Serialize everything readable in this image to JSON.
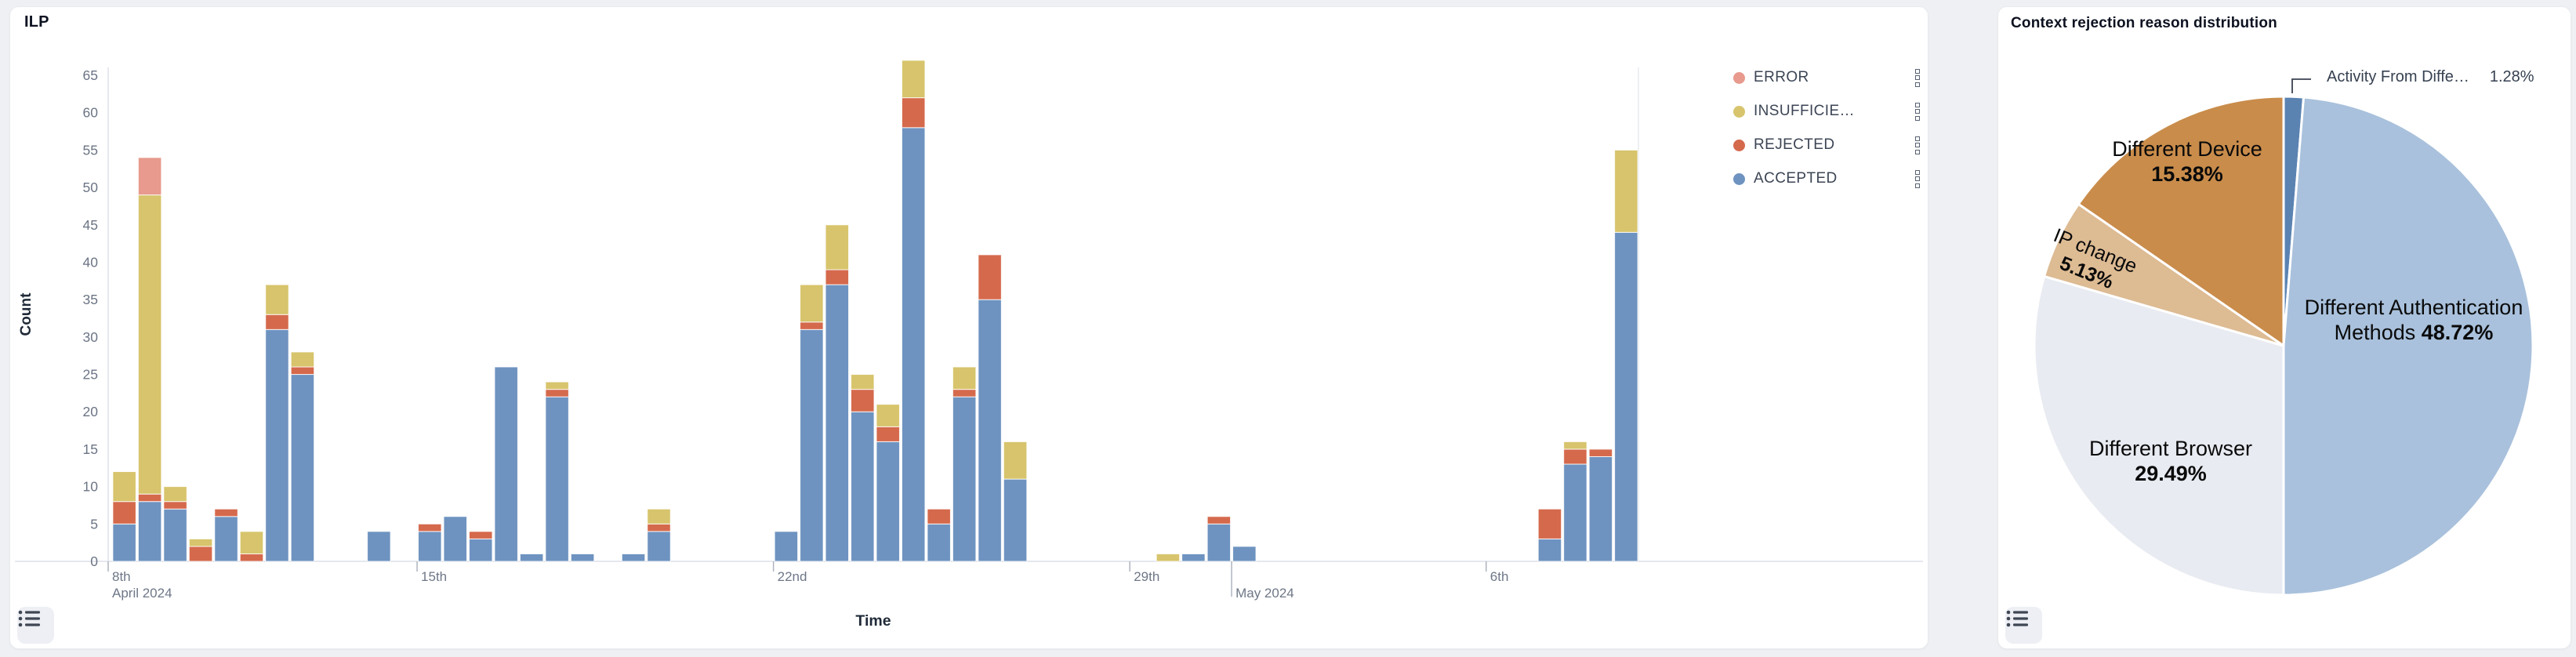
{
  "left_panel": {
    "title": "ILP",
    "xlabel": "Time",
    "ylabel": "Count",
    "legend": {
      "items": [
        {
          "label": "ERROR",
          "color": "#E79A8D"
        },
        {
          "label": "INSUFFICIE…",
          "color": "#D7C46C"
        },
        {
          "label": "REJECTED",
          "color": "#D5694C"
        },
        {
          "label": "ACCEPTED",
          "color": "#6E93C0"
        }
      ]
    }
  },
  "right_panel": {
    "title": "Context rejection reason distribution"
  },
  "icons": {
    "corner_button": "list-icon",
    "legend_row_button": "drag-handle-squares-icon"
  },
  "chart_data": [
    {
      "id": "ilp",
      "type": "bar",
      "stacked": true,
      "title": "ILP",
      "xlabel": "Time",
      "ylabel": "Count",
      "ylim": [
        0,
        65
      ],
      "ytick_step": 5,
      "grid": false,
      "legend_position": "right",
      "bin_hours": 12,
      "series_order": [
        "accepted",
        "rejected",
        "insufficient",
        "error"
      ],
      "series_colors": {
        "accepted": "#6E93C0",
        "rejected": "#D5694C",
        "insufficient": "#D7C46C",
        "error": "#E79A8D"
      },
      "xticks": [
        {
          "label": "8th",
          "sublabel": "April 2024",
          "bin": -2,
          "clamped": true
        },
        {
          "label": "15th",
          "sublabel": "",
          "bin": 12
        },
        {
          "label": "22nd",
          "sublabel": "",
          "bin": 26
        },
        {
          "label": "29th",
          "sublabel": "",
          "bin": 40
        },
        {
          "label": "",
          "sublabel": "May 2024",
          "bin": 44,
          "long_tick": true
        },
        {
          "label": "6th",
          "sublabel": "",
          "bin": 54
        }
      ],
      "bins": [
        {
          "bin": 0,
          "time": "Apr 9 00-12",
          "accepted": 5,
          "rejected": 3,
          "insufficient": 4,
          "error": 0
        },
        {
          "bin": 1,
          "time": "Apr 9 12-24",
          "accepted": 8,
          "rejected": 1,
          "insufficient": 40,
          "error": 5
        },
        {
          "bin": 2,
          "time": "Apr 10 00-12",
          "accepted": 7,
          "rejected": 1,
          "insufficient": 2,
          "error": 0
        },
        {
          "bin": 3,
          "time": "Apr 10 12-24",
          "accepted": 0,
          "rejected": 2,
          "insufficient": 1,
          "error": 0
        },
        {
          "bin": 4,
          "time": "Apr 11 00-12",
          "accepted": 6,
          "rejected": 1,
          "insufficient": 0,
          "error": 0
        },
        {
          "bin": 5,
          "time": "Apr 11 12-24",
          "accepted": 0,
          "rejected": 1,
          "insufficient": 3,
          "error": 0
        },
        {
          "bin": 6,
          "time": "Apr 12 00-12",
          "accepted": 31,
          "rejected": 2,
          "insufficient": 4,
          "error": 0
        },
        {
          "bin": 7,
          "time": "Apr 12 12-24",
          "accepted": 25,
          "rejected": 1,
          "insufficient": 2,
          "error": 0
        },
        {
          "bin": 10,
          "time": "Apr 14 00-12",
          "accepted": 4,
          "rejected": 0,
          "insufficient": 0,
          "error": 0
        },
        {
          "bin": 12,
          "time": "Apr 15 00-12",
          "accepted": 4,
          "rejected": 1,
          "insufficient": 0,
          "error": 0
        },
        {
          "bin": 13,
          "time": "Apr 15 12-24",
          "accepted": 6,
          "rejected": 0,
          "insufficient": 0,
          "error": 0
        },
        {
          "bin": 14,
          "time": "Apr 16 00-12",
          "accepted": 3,
          "rejected": 1,
          "insufficient": 0,
          "error": 0
        },
        {
          "bin": 15,
          "time": "Apr 16 12-24",
          "accepted": 26,
          "rejected": 0,
          "insufficient": 0,
          "error": 0
        },
        {
          "bin": 16,
          "time": "Apr 17 00-12",
          "accepted": 1,
          "rejected": 0,
          "insufficient": 0,
          "error": 0
        },
        {
          "bin": 17,
          "time": "Apr 17 12-24",
          "accepted": 22,
          "rejected": 1,
          "insufficient": 1,
          "error": 0
        },
        {
          "bin": 18,
          "time": "Apr 18 00-12",
          "accepted": 1,
          "rejected": 0,
          "insufficient": 0,
          "error": 0
        },
        {
          "bin": 20,
          "time": "Apr 19 00-12",
          "accepted": 1,
          "rejected": 0,
          "insufficient": 0,
          "error": 0
        },
        {
          "bin": 21,
          "time": "Apr 19 12-24",
          "accepted": 4,
          "rejected": 1,
          "insufficient": 2,
          "error": 0
        },
        {
          "bin": 26,
          "time": "Apr 22 00-12",
          "accepted": 4,
          "rejected": 0,
          "insufficient": 0,
          "error": 0
        },
        {
          "bin": 27,
          "time": "Apr 22 12-24",
          "accepted": 31,
          "rejected": 1,
          "insufficient": 5,
          "error": 0
        },
        {
          "bin": 28,
          "time": "Apr 23 00-12",
          "accepted": 37,
          "rejected": 2,
          "insufficient": 6,
          "error": 0
        },
        {
          "bin": 29,
          "time": "Apr 23 12-24",
          "accepted": 20,
          "rejected": 3,
          "insufficient": 2,
          "error": 0
        },
        {
          "bin": 30,
          "time": "Apr 24 00-12",
          "accepted": 16,
          "rejected": 2,
          "insufficient": 3,
          "error": 0
        },
        {
          "bin": 31,
          "time": "Apr 24 12-24",
          "accepted": 58,
          "rejected": 4,
          "insufficient": 5,
          "error": 0
        },
        {
          "bin": 32,
          "time": "Apr 25 00-12",
          "accepted": 5,
          "rejected": 2,
          "insufficient": 0,
          "error": 0
        },
        {
          "bin": 33,
          "time": "Apr 25 12-24",
          "accepted": 22,
          "rejected": 1,
          "insufficient": 3,
          "error": 0
        },
        {
          "bin": 34,
          "time": "Apr 26 00-12",
          "accepted": 35,
          "rejected": 6,
          "insufficient": 0,
          "error": 0
        },
        {
          "bin": 35,
          "time": "Apr 26 12-24",
          "accepted": 11,
          "rejected": 0,
          "insufficient": 5,
          "error": 0
        },
        {
          "bin": 41,
          "time": "Apr 29 12-24",
          "accepted": 0,
          "rejected": 0,
          "insufficient": 1,
          "error": 0
        },
        {
          "bin": 42,
          "time": "Apr 30 00-12",
          "accepted": 1,
          "rejected": 0,
          "insufficient": 0,
          "error": 0
        },
        {
          "bin": 43,
          "time": "Apr 30 12-24",
          "accepted": 5,
          "rejected": 1,
          "insufficient": 0,
          "error": 0
        },
        {
          "bin": 44,
          "time": "May 1 00-12",
          "accepted": 2,
          "rejected": 0,
          "insufficient": 0,
          "error": 0
        },
        {
          "bin": 56,
          "time": "May 7 00-12",
          "accepted": 3,
          "rejected": 4,
          "insufficient": 0,
          "error": 0
        },
        {
          "bin": 57,
          "time": "May 7 12-24",
          "accepted": 13,
          "rejected": 2,
          "insufficient": 1,
          "error": 0
        },
        {
          "bin": 58,
          "time": "May 8 00-12",
          "accepted": 14,
          "rejected": 1,
          "insufficient": 0,
          "error": 0
        },
        {
          "bin": 59,
          "time": "May 8 12-24",
          "accepted": 44,
          "rejected": 0,
          "insufficient": 11,
          "error": 0
        }
      ]
    },
    {
      "id": "rejection-pie",
      "type": "pie",
      "title": "Context rejection reason distribution",
      "start_angle_deg": -90,
      "clockwise": true,
      "slices": [
        {
          "label": "Activity From Diffe…",
          "pct": 1.28,
          "pct_str": "1.28%",
          "color": "#5B83B2",
          "callout": true
        },
        {
          "label": "Different Authentication Methods",
          "pct": 48.72,
          "pct_str": "48.72%",
          "color": "#A9C1DC"
        },
        {
          "label": "Different Browser",
          "pct": 29.49,
          "pct_str": "29.49%",
          "color": "#E8EBF1"
        },
        {
          "label": "IP change",
          "pct": 5.13,
          "pct_str": "5.13%",
          "color": "#DDBB93"
        },
        {
          "label": "Different Device",
          "pct": 15.38,
          "pct_str": "15.38%",
          "color": "#C98C4B"
        }
      ]
    }
  ]
}
